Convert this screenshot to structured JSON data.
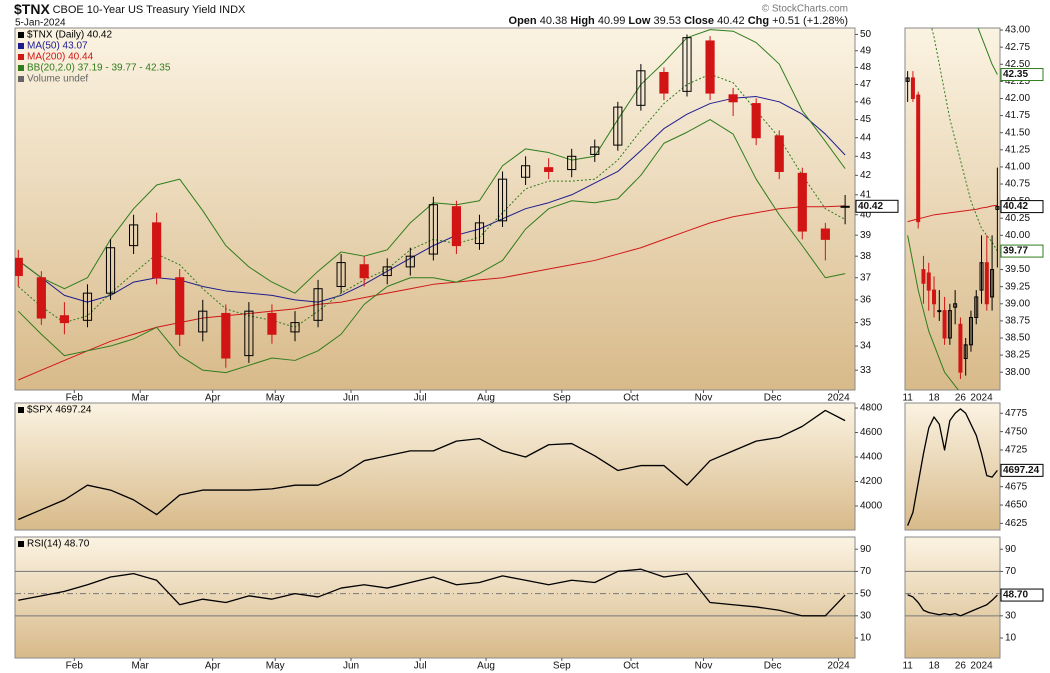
{
  "header": {
    "symbol": "$TNX",
    "name": "CBOE 10-Year US Treasury Yield INDX",
    "date": "5-Jan-2024",
    "credit": "© StockCharts.com",
    "quote": [
      {
        "label": "Open",
        "value": "40.38"
      },
      {
        "label": "High",
        "value": "40.99"
      },
      {
        "label": "Low",
        "value": "39.53"
      },
      {
        "label": "Close",
        "value": "40.42"
      },
      {
        "label": "Chg",
        "value": "+0.51 (+1.28%)"
      }
    ]
  },
  "chart_data": [
    {
      "type": "candlestick",
      "name": "$TNX (Daily) 40.42",
      "legend_note": "Volume undef",
      "log": true,
      "show_x_labels": true,
      "x": [
        0,
        7,
        14,
        21,
        28,
        35,
        42,
        49,
        56,
        63,
        70,
        77,
        84,
        91,
        98,
        105,
        112,
        119,
        126,
        133,
        140,
        147,
        154,
        161,
        168,
        175,
        182,
        189,
        196,
        203,
        210,
        217,
        224,
        231,
        238,
        245,
        251
      ],
      "open": [
        37.9,
        37.0,
        35.3,
        35.1,
        36.3,
        38.5,
        39.6,
        37.0,
        34.6,
        35.4,
        33.6,
        35.4,
        34.6,
        35.1,
        36.6,
        37.6,
        37.1,
        37.5,
        38.1,
        40.4,
        38.6,
        39.7,
        41.9,
        42.4,
        42.3,
        43.1,
        43.6,
        45.8,
        47.7,
        46.6,
        49.6,
        46.4,
        45.9,
        44.1,
        42.1,
        39.3,
        40.38
      ],
      "high": [
        38.3,
        37.3,
        35.9,
        36.7,
        38.8,
        40.0,
        40.1,
        37.4,
        36.0,
        35.8,
        35.9,
        35.8,
        35.5,
        36.9,
        38.1,
        38.0,
        37.9,
        38.4,
        40.9,
        40.7,
        40.0,
        42.2,
        43.0,
        42.9,
        43.4,
        43.9,
        46.0,
        48.2,
        48.0,
        50.0,
        49.9,
        46.8,
        46.2,
        44.4,
        42.4,
        39.6,
        40.99
      ],
      "low": [
        36.6,
        34.9,
        34.5,
        34.8,
        36.0,
        38.1,
        36.7,
        34.0,
        34.2,
        33.1,
        33.3,
        34.1,
        34.2,
        34.8,
        36.3,
        36.6,
        36.7,
        37.1,
        37.8,
        38.1,
        38.3,
        39.4,
        41.5,
        41.8,
        41.9,
        42.7,
        43.3,
        45.5,
        46.1,
        46.3,
        46.1,
        45.2,
        43.6,
        41.8,
        38.8,
        37.8,
        39.53
      ],
      "close": [
        37.1,
        35.2,
        35.0,
        36.3,
        38.4,
        39.5,
        37.0,
        34.5,
        35.5,
        33.5,
        35.5,
        34.5,
        35.0,
        36.5,
        37.7,
        37.0,
        37.5,
        38.0,
        40.5,
        38.5,
        39.6,
        41.8,
        42.5,
        42.2,
        43.0,
        43.5,
        45.7,
        47.8,
        46.5,
        49.8,
        46.5,
        46.0,
        44.0,
        42.2,
        39.2,
        38.8,
        40.42
      ],
      "close_label": "40.42",
      "series": [
        {
          "name": "MA(50) 43.07",
          "color": "#1c1c8f",
          "values": [
            37.8,
            37.0,
            36.2,
            35.9,
            36.2,
            36.8,
            37.0,
            36.9,
            36.6,
            36.4,
            36.3,
            36.2,
            36.0,
            35.9,
            36.2,
            36.7,
            37.3,
            37.9,
            38.5,
            39.0,
            39.3,
            39.8,
            40.3,
            40.6,
            41.0,
            41.6,
            42.2,
            43.3,
            44.5,
            45.3,
            45.9,
            46.2,
            46.3,
            46.0,
            45.3,
            44.2,
            43.07
          ]
        },
        {
          "name": "MA(200) 40.44",
          "color": "#d01818",
          "values": [
            32.6,
            33.0,
            33.4,
            33.8,
            34.2,
            34.5,
            34.8,
            35.0,
            35.2,
            35.3,
            35.4,
            35.5,
            35.6,
            35.8,
            35.9,
            36.1,
            36.3,
            36.5,
            36.7,
            36.8,
            36.9,
            37.0,
            37.2,
            37.4,
            37.6,
            37.8,
            38.1,
            38.4,
            38.8,
            39.2,
            39.6,
            39.9,
            40.1,
            40.3,
            40.4,
            40.4,
            40.44
          ]
        },
        {
          "name": "BB(20,2.0) 37.19 - 39.77 - 42.35",
          "color": "#2f7d1c",
          "upper": [
            37.8,
            37.0,
            36.5,
            37.0,
            38.8,
            40.3,
            41.5,
            41.8,
            40.2,
            38.5,
            37.5,
            36.8,
            36.3,
            37.3,
            38.2,
            38.0,
            38.3,
            39.6,
            40.6,
            40.5,
            40.7,
            42.5,
            43.4,
            43.2,
            42.8,
            43.0,
            45.0,
            47.0,
            48.3,
            49.8,
            50.3,
            50.2,
            49.5,
            48.2,
            45.5,
            43.8,
            42.35
          ],
          "mid": [
            36.6,
            35.7,
            35.0,
            35.3,
            36.3,
            37.2,
            38.1,
            37.6,
            36.5,
            35.6,
            35.3,
            35.1,
            34.8,
            35.5,
            36.3,
            36.9,
            37.4,
            38.3,
            38.8,
            38.6,
            38.9,
            40.1,
            41.3,
            41.7,
            41.7,
            41.8,
            42.8,
            44.4,
            45.9,
            47.0,
            47.6,
            47.1,
            45.5,
            44.0,
            42.0,
            40.3,
            39.77
          ],
          "lower": [
            35.5,
            34.5,
            33.6,
            33.8,
            34.0,
            34.3,
            34.8,
            33.6,
            33.0,
            32.9,
            33.2,
            33.5,
            33.4,
            33.8,
            34.5,
            35.8,
            36.6,
            37.0,
            37.0,
            36.8,
            37.2,
            37.8,
            39.3,
            40.3,
            40.7,
            40.6,
            40.8,
            42.0,
            43.7,
            44.3,
            45.0,
            44.2,
            41.8,
            40.0,
            38.5,
            37.0,
            37.19
          ]
        }
      ],
      "xlim": [
        -1,
        254
      ],
      "ylim": [
        32.2,
        50.4
      ],
      "xticks": [
        {
          "value": 17,
          "label": "Feb"
        },
        {
          "value": 37,
          "label": "Mar"
        },
        {
          "value": 59,
          "label": "Apr"
        },
        {
          "value": 78,
          "label": "May"
        },
        {
          "value": 101,
          "label": "Jun"
        },
        {
          "value": 122,
          "label": "Jul"
        },
        {
          "value": 142,
          "label": "Aug"
        },
        {
          "value": 165,
          "label": "Sep"
        },
        {
          "value": 186,
          "label": "Oct"
        },
        {
          "value": 208,
          "label": "Nov"
        },
        {
          "value": 229,
          "label": "Dec"
        },
        {
          "value": 249,
          "label": "2024"
        }
      ],
      "yticks": [
        33,
        34,
        35,
        36,
        37,
        38,
        39,
        40,
        41,
        42,
        43,
        44,
        45,
        46,
        47,
        48,
        49,
        50
      ]
    },
    {
      "type": "line",
      "x": [
        0,
        7,
        14,
        21,
        28,
        35,
        42,
        49,
        56,
        63,
        70,
        77,
        84,
        91,
        98,
        105,
        112,
        119,
        126,
        133,
        140,
        147,
        154,
        161,
        168,
        175,
        182,
        189,
        196,
        203,
        210,
        217,
        224,
        231,
        238,
        245,
        251
      ],
      "series": [
        {
          "name": "$SPX 4697.24",
          "color": "#000000",
          "values": [
            3890,
            3970,
            4050,
            4170,
            4130,
            4050,
            3930,
            4090,
            4130,
            4130,
            4130,
            4140,
            4170,
            4170,
            4250,
            4370,
            4410,
            4450,
            4450,
            4530,
            4550,
            4450,
            4400,
            4500,
            4510,
            4410,
            4290,
            4330,
            4330,
            4170,
            4370,
            4450,
            4530,
            4560,
            4650,
            4780,
            4697.24
          ]
        }
      ],
      "xlim": [
        -1,
        254
      ],
      "ylim": [
        3804,
        4841
      ],
      "yticks": [
        4000,
        4200,
        4400,
        4600,
        4800
      ]
    },
    {
      "type": "line",
      "show_x_labels": true,
      "x": [
        0,
        7,
        14,
        21,
        28,
        35,
        42,
        49,
        56,
        63,
        70,
        77,
        84,
        91,
        98,
        105,
        112,
        119,
        126,
        133,
        140,
        147,
        154,
        161,
        168,
        175,
        182,
        189,
        196,
        203,
        210,
        217,
        224,
        231,
        238,
        245,
        251
      ],
      "series": [
        {
          "name": "RSI(14) 48.70",
          "color": "#000000",
          "values": [
            44,
            48,
            52,
            58,
            65,
            68,
            62,
            40,
            45,
            42,
            48,
            45,
            50,
            47,
            55,
            58,
            55,
            60,
            65,
            58,
            60,
            66,
            62,
            58,
            62,
            60,
            70,
            72,
            65,
            68,
            42,
            40,
            38,
            35,
            30,
            30,
            48.7
          ]
        }
      ],
      "reference_lines": [
        {
          "value": 30,
          "style": "solid"
        },
        {
          "value": 50,
          "style": "dashed"
        },
        {
          "value": 70,
          "style": "solid"
        }
      ],
      "xlim": [
        -1,
        254
      ],
      "ylim": [
        -8,
        101
      ],
      "yticks": [
        10,
        30,
        50,
        70,
        90
      ],
      "xticks": [
        {
          "value": 17,
          "label": "Feb"
        },
        {
          "value": 37,
          "label": "Mar"
        },
        {
          "value": 59,
          "label": "Apr"
        },
        {
          "value": 78,
          "label": "May"
        },
        {
          "value": 101,
          "label": "Jun"
        },
        {
          "value": 122,
          "label": "Jul"
        },
        {
          "value": 142,
          "label": "Aug"
        },
        {
          "value": 165,
          "label": "Sep"
        },
        {
          "value": 186,
          "label": "Oct"
        },
        {
          "value": 208,
          "label": "Nov"
        },
        {
          "value": 229,
          "label": "Dec"
        },
        {
          "value": 249,
          "label": "2024"
        }
      ]
    },
    {
      "type": "candlestick",
      "show_x_labels": true,
      "categories": [
        "11",
        null,
        null,
        null,
        null,
        "18",
        null,
        null,
        null,
        null,
        "26",
        null,
        null,
        null,
        "2024",
        null,
        null,
        null
      ],
      "open": [
        42.25,
        42.3,
        42.05,
        39.5,
        39.45,
        39.2,
        38.9,
        38.9,
        38.5,
        38.95,
        38.7,
        38.2,
        38.4,
        38.8,
        39.2,
        39.6,
        39.1,
        40.38
      ],
      "high": [
        42.4,
        42.4,
        42.1,
        39.7,
        39.6,
        39.4,
        39.2,
        39.1,
        39.0,
        39.2,
        38.8,
        38.5,
        38.9,
        39.2,
        40.0,
        40.0,
        40.0,
        40.99
      ],
      "low": [
        41.95,
        41.95,
        40.1,
        39.0,
        38.9,
        38.8,
        38.75,
        38.4,
        38.4,
        38.7,
        37.9,
        37.95,
        38.3,
        38.7,
        39.0,
        38.9,
        38.9,
        39.53
      ],
      "close": [
        42.3,
        42.0,
        40.2,
        39.3,
        39.2,
        39.0,
        38.9,
        38.5,
        38.9,
        39.0,
        38.0,
        38.4,
        38.8,
        39.1,
        39.6,
        39.0,
        39.5,
        40.42
      ],
      "close_label": "40.42",
      "series": [
        {
          "color": "#d01818",
          "values": [
            40.2,
            40.22,
            40.24,
            40.26,
            40.28,
            40.3,
            40.31,
            40.32,
            40.33,
            40.34,
            40.35,
            40.36,
            40.37,
            40.38,
            40.4,
            40.41,
            40.43,
            40.44
          ]
        },
        {
          "color": "#2f7d1c",
          "upper_label": "42.35",
          "mid_label": "39.77",
          "upper": [
            48.2,
            48.0,
            47.6,
            47.2,
            46.8,
            46.2,
            45.7,
            45.2,
            44.8,
            44.4,
            44.1,
            43.8,
            43.4,
            43.1,
            42.9,
            42.7,
            42.5,
            42.35
          ],
          "mid": [
            44.5,
            44.2,
            43.9,
            43.5,
            43.2,
            42.9,
            42.5,
            42.1,
            41.7,
            41.4,
            41.1,
            40.8,
            40.5,
            40.3,
            40.1,
            40.0,
            39.9,
            39.77
          ],
          "lower": [
            40.0,
            39.6,
            39.2,
            38.9,
            38.6,
            38.4,
            38.2,
            38.0,
            37.9,
            37.8,
            37.7,
            37.6,
            37.5,
            37.4,
            37.3,
            37.25,
            37.2,
            37.19
          ]
        }
      ],
      "ylim": [
        37.74,
        43.03
      ],
      "yticks": [
        {
          "value": 43,
          "label": "43.00"
        },
        {
          "value": 42.75,
          "label": "42.75"
        },
        {
          "value": 42.5,
          "label": "42.50"
        },
        {
          "value": 42.25,
          "label": "42.25"
        },
        {
          "value": 42,
          "label": "42.00"
        },
        {
          "value": 41.75,
          "label": "41.75"
        },
        {
          "value": 41.5,
          "label": "41.50"
        },
        {
          "value": 41.25,
          "label": "41.25"
        },
        {
          "value": 41,
          "label": "41.00"
        },
        {
          "value": 40.75,
          "label": "40.75"
        },
        {
          "value": 40.5,
          "label": "40.50"
        },
        {
          "value": 40.25,
          "label": "40.25"
        },
        {
          "value": 40,
          "label": "40.00"
        },
        {
          "value": 39.75,
          "label": "39.75"
        },
        {
          "value": 39.5,
          "label": "39.50"
        },
        {
          "value": 39.25,
          "label": "39.25"
        },
        {
          "value": 39,
          "label": "39.00"
        },
        {
          "value": 38.75,
          "label": "38.75"
        },
        {
          "value": 38.5,
          "label": "38.50"
        },
        {
          "value": 38.25,
          "label": "38.25"
        },
        {
          "value": 38,
          "label": "38.00"
        }
      ]
    },
    {
      "type": "line",
      "series": [
        {
          "color": "#000000",
          "last_label": "4697.24",
          "values": [
            4622,
            4640,
            4680,
            4720,
            4755,
            4770,
            4760,
            4725,
            4765,
            4775,
            4781,
            4775,
            4760,
            4745,
            4720,
            4690,
            4688,
            4697.24
          ]
        }
      ],
      "ylim": [
        4616,
        4789
      ],
      "yticks": [
        4625,
        4650,
        4675,
        4725,
        4750,
        4775
      ]
    },
    {
      "type": "line",
      "show_x_labels": true,
      "categories": [
        "11",
        null,
        null,
        null,
        null,
        "18",
        null,
        null,
        null,
        null,
        "26",
        null,
        null,
        null,
        "2024",
        null,
        null,
        null
      ],
      "series": [
        {
          "color": "#000000",
          "last_label": "48.70",
          "values": [
            49,
            47,
            42,
            35,
            33,
            32,
            31,
            32,
            31,
            32,
            30,
            32,
            34,
            36,
            38,
            40,
            44,
            48.7
          ]
        }
      ],
      "reference_lines": [
        {
          "value": 30,
          "style": "solid"
        },
        {
          "value": 50,
          "style": "dashed"
        },
        {
          "value": 70,
          "style": "solid"
        }
      ],
      "ylim": [
        -8,
        101
      ],
      "yticks": [
        10,
        30,
        50,
        70,
        90
      ]
    }
  ]
}
